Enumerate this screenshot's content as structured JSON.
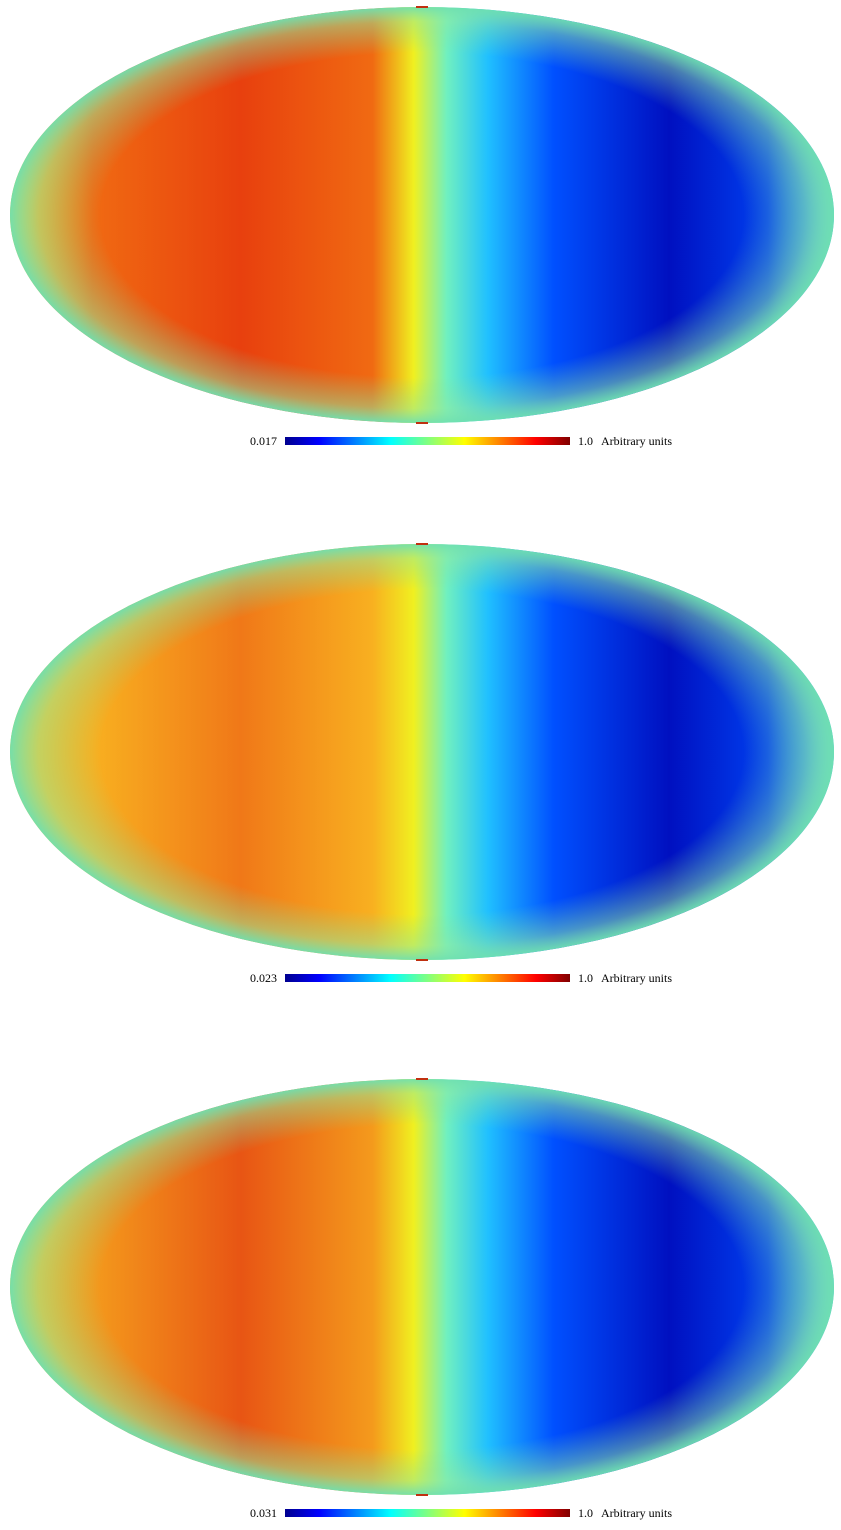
{
  "chart_data": [
    {
      "type": "mollweide",
      "colormap": "jet",
      "clim": [
        0.017,
        1
      ],
      "cticks": [
        0.017,
        {
          "value": 1,
          "label": "1.0"
        }
      ],
      "unit": "Arbitrary units"
    },
    {
      "type": "mollweide",
      "colormap": "jet",
      "clim": [
        0.023,
        1
      ],
      "cticks": [
        0.023,
        {
          "value": 1,
          "label": "1.0"
        }
      ],
      "unit": "Arbitrary units"
    },
    {
      "type": "mollweide",
      "colormap": "jet",
      "clim": [
        0.031,
        1
      ],
      "cticks": [
        0.031,
        {
          "value": 1,
          "label": "1.0"
        }
      ],
      "unit": "Arbitrary units"
    }
  ]
}
